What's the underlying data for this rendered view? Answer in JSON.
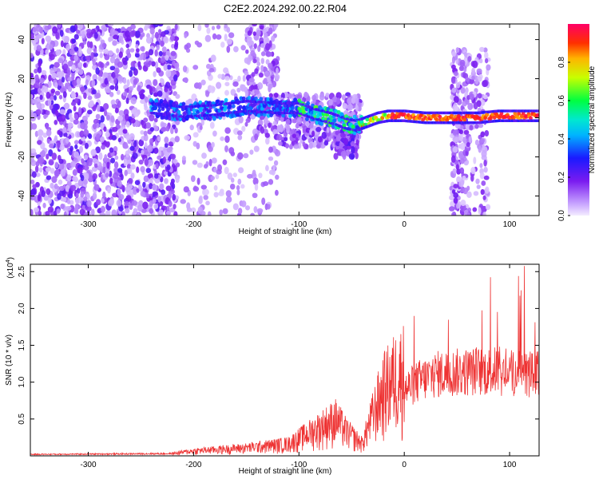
{
  "title": "C2E2.2024.292.00.22.R04",
  "chart_data": [
    {
      "type": "heatmap",
      "xlabel": "Height of straight line (km)",
      "ylabel": "Frequency (Hz)",
      "xlim": [
        -355,
        128
      ],
      "ylim": [
        -50,
        48
      ],
      "x_ticks": [
        -300,
        -200,
        -100,
        0,
        100
      ],
      "y_ticks": [
        -40,
        -20,
        0,
        20,
        40
      ],
      "colorbar": {
        "label": "Normalized spectral amplitude",
        "range": [
          0,
          1
        ],
        "ticks": [
          0.0,
          0.2,
          0.4,
          0.6,
          0.8
        ]
      },
      "ridge": [
        {
          "x": -240,
          "y": 5
        },
        {
          "x": -210,
          "y": 3
        },
        {
          "x": -180,
          "y": 4
        },
        {
          "x": -150,
          "y": 6
        },
        {
          "x": -120,
          "y": 5
        },
        {
          "x": -100,
          "y": 5
        },
        {
          "x": -85,
          "y": 2
        },
        {
          "x": -70,
          "y": 0
        },
        {
          "x": -55,
          "y": -3
        },
        {
          "x": -45,
          "y": -4
        },
        {
          "x": -35,
          "y": -2
        },
        {
          "x": -25,
          "y": 0
        },
        {
          "x": -15,
          "y": 1
        },
        {
          "x": 0,
          "y": 1
        },
        {
          "x": 20,
          "y": 0
        },
        {
          "x": 45,
          "y": 0
        },
        {
          "x": 70,
          "y": 0
        },
        {
          "x": 90,
          "y": 1
        },
        {
          "x": 128,
          "y": 1
        }
      ]
    },
    {
      "type": "line",
      "xlabel": "Height of straight line (km)",
      "ylabel": "SNR (10 * v/v)",
      "y_multiplier": "(x10",
      "y_multiplier_exp": "4",
      "y_multiplier_close": ")",
      "xlim": [
        -355,
        128
      ],
      "ylim": [
        0,
        2.6
      ],
      "x_ticks": [
        -300,
        -200,
        -100,
        0,
        100
      ],
      "y_ticks": [
        0.5,
        1.0,
        1.5,
        2.0,
        2.5
      ],
      "y_tick_labels": [
        "0.5",
        "1.0",
        "1.5",
        "2.0",
        "2.5"
      ],
      "color": "#ee3333",
      "envelope": [
        {
          "x": -355,
          "y": 0.02
        },
        {
          "x": -220,
          "y": 0.03
        },
        {
          "x": -200,
          "y": 0.06
        },
        {
          "x": -150,
          "y": 0.1
        },
        {
          "x": -110,
          "y": 0.15
        },
        {
          "x": -95,
          "y": 0.25
        },
        {
          "x": -80,
          "y": 0.35
        },
        {
          "x": -65,
          "y": 0.45
        },
        {
          "x": -55,
          "y": 0.3
        },
        {
          "x": -40,
          "y": 0.15
        },
        {
          "x": -30,
          "y": 0.5
        },
        {
          "x": -20,
          "y": 0.8
        },
        {
          "x": -10,
          "y": 0.95
        },
        {
          "x": 0,
          "y": 1.05
        },
        {
          "x": 15,
          "y": 1.2
        },
        {
          "x": 30,
          "y": 1.3
        },
        {
          "x": 50,
          "y": 1.33
        },
        {
          "x": 70,
          "y": 1.35
        },
        {
          "x": 90,
          "y": 1.35
        },
        {
          "x": 110,
          "y": 1.3
        },
        {
          "x": 128,
          "y": 1.3
        }
      ]
    }
  ]
}
